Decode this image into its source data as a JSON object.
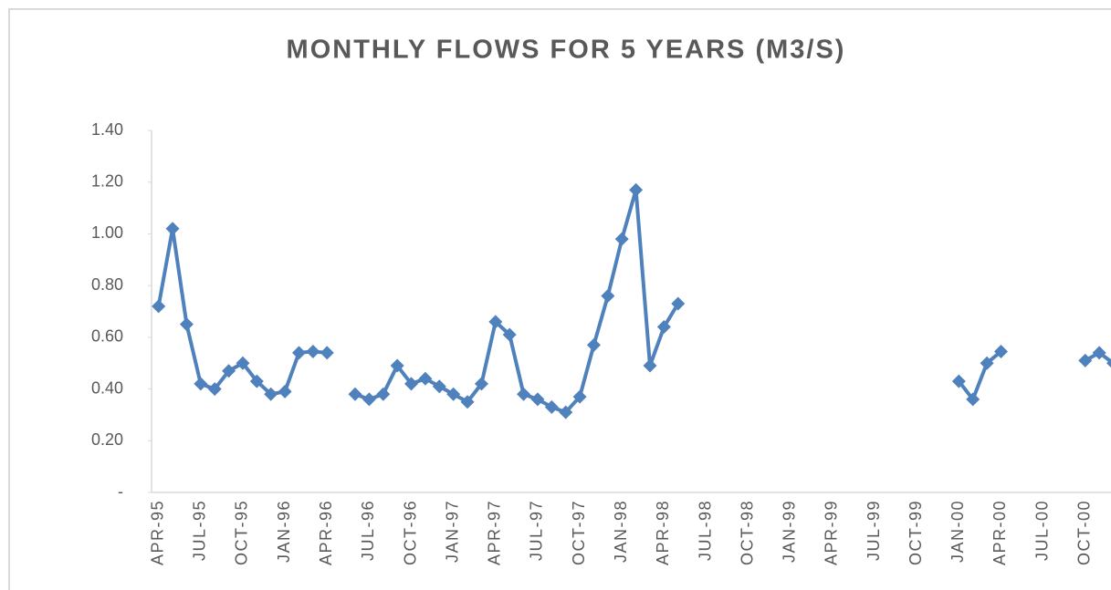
{
  "chart_data": {
    "type": "line",
    "title": "MONTHLY FLOWS FOR 5 YEARS (M3/S)",
    "categories": [
      "APR-95",
      null,
      null,
      "JUL-95",
      null,
      null,
      "OCT-95",
      null,
      null,
      "JAN-96",
      null,
      null,
      "APR-96",
      null,
      null,
      "JUL-96",
      null,
      null,
      "OCT-96",
      null,
      null,
      "JAN-97",
      null,
      null,
      "APR-97",
      null,
      null,
      "JUL-97",
      null,
      null,
      "OCT-97",
      null,
      null,
      "JAN-98",
      null,
      null,
      "APR-98",
      null,
      null,
      "JUL-98",
      null,
      null,
      "OCT-98",
      null,
      null,
      "JAN-99",
      null,
      null,
      "APR-99",
      null,
      null,
      "JUL-99",
      null,
      null,
      "OCT-99",
      null,
      null,
      "JAN-00",
      null,
      null,
      "APR-00",
      null,
      null,
      "JUL-00",
      null,
      null,
      "OCT-00",
      null,
      null
    ],
    "series": [
      {
        "name": null,
        "color": "#4f81bd",
        "values": [
          0.72,
          1.02,
          0.65,
          0.42,
          0.4,
          0.47,
          0.5,
          0.43,
          0.38,
          0.39,
          0.54,
          0.545,
          0.54,
          null,
          0.38,
          0.36,
          0.38,
          0.49,
          0.42,
          0.44,
          0.41,
          0.38,
          0.35,
          0.42,
          0.66,
          0.61,
          0.38,
          0.36,
          0.33,
          0.31,
          0.37,
          0.57,
          0.76,
          0.98,
          1.17,
          0.49,
          0.64,
          0.73,
          null,
          null,
          null,
          null,
          null,
          null,
          null,
          null,
          null,
          null,
          null,
          null,
          null,
          null,
          null,
          null,
          null,
          null,
          null,
          0.43,
          0.36,
          0.5,
          0.545,
          null,
          null,
          null,
          null,
          null,
          0.51,
          0.54,
          0.5
        ]
      }
    ],
    "ylim": [
      0,
      1.4
    ],
    "yticks": [
      {
        "value": 0,
        "label": "-"
      },
      {
        "value": 0.2,
        "label": "0.20"
      },
      {
        "value": 0.4,
        "label": "0.40"
      },
      {
        "value": 0.6,
        "label": "0.60"
      },
      {
        "value": 0.8,
        "label": "0.80"
      },
      {
        "value": 1.0,
        "label": "1.00"
      },
      {
        "value": 1.2,
        "label": "1.20"
      },
      {
        "value": 1.4,
        "label": "1.40"
      }
    ],
    "grid": false
  }
}
